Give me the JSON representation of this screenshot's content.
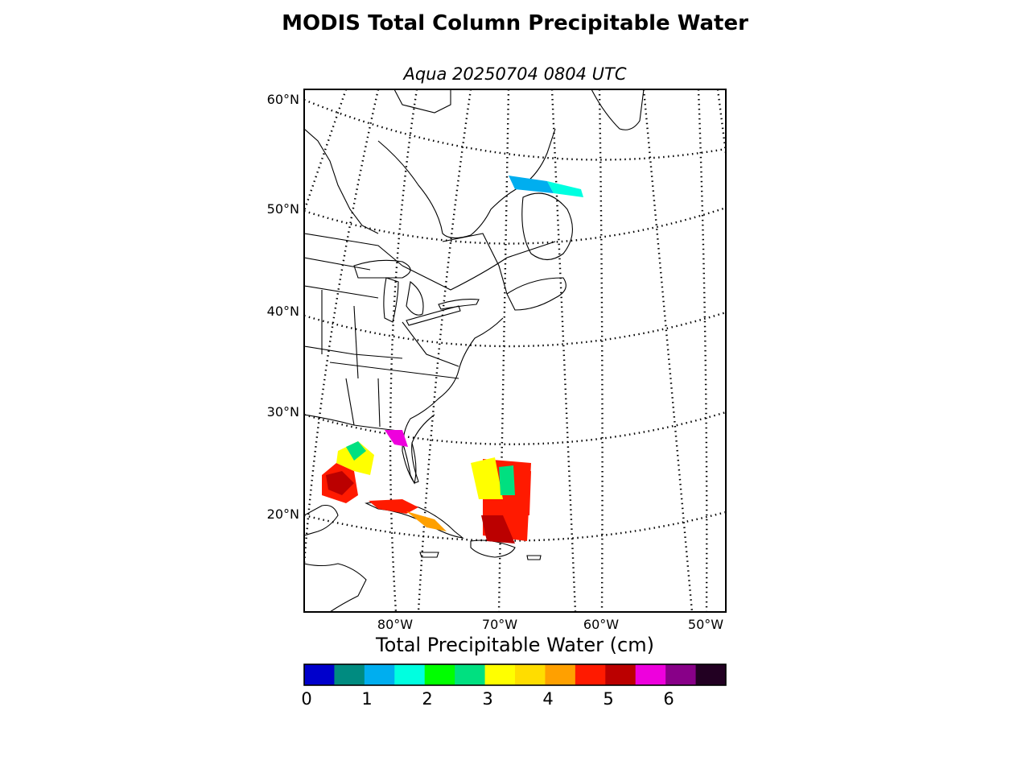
{
  "title": "MODIS Total Column Precipitable Water",
  "subtitle": "Aqua 20250704 0804 UTC",
  "map": {
    "lat_labels": [
      "60°N",
      "50°N",
      "40°N",
      "30°N",
      "20°N"
    ],
    "lon_labels": [
      "80°W",
      "70°W",
      "60°W",
      "50°W"
    ],
    "graticule": "dotted",
    "coastline_color": "#000000"
  },
  "colorbar": {
    "title": "Total Precipitable Water (cm)",
    "ticks": [
      "0",
      "1",
      "2",
      "3",
      "4",
      "5",
      "6"
    ],
    "colors": [
      "#0000cc",
      "#008b80",
      "#00aeef",
      "#00ffe0",
      "#00ff00",
      "#00e080",
      "#ffff00",
      "#ffdd00",
      "#ffa000",
      "#ff1a00",
      "#bb0000",
      "#ee00dd",
      "#880088",
      "#220022"
    ]
  }
}
